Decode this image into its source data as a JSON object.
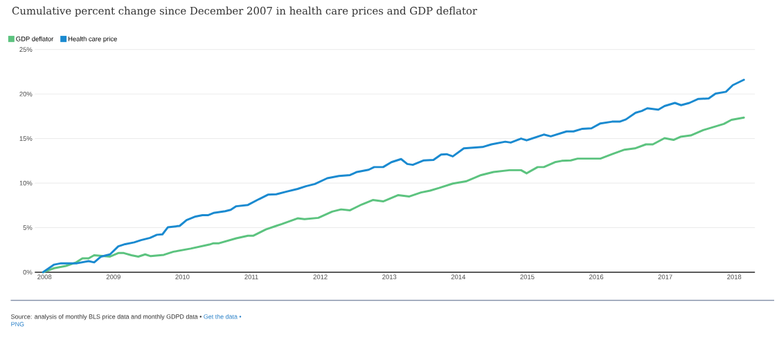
{
  "chart_data": {
    "type": "line",
    "title": "Cumulative percent change since December 2007 in health care prices and GDP deflator",
    "annotations": [
      "Source: analysis of monthly BLS price data and monthly GDPD data •",
      "Get the data •",
      "PNG"
    ],
    "series": [
      {
        "name": "GDP deflator",
        "color": "#5cc37f",
        "x": [
          2007.98,
          2008.14,
          2008.31,
          2008.46,
          2008.55,
          2008.64,
          2008.72,
          2008.95,
          2009.07,
          2009.15,
          2009.26,
          2009.36,
          2009.46,
          2009.54,
          2009.73,
          2009.87,
          2010.12,
          2010.39,
          2010.45,
          2010.53,
          2010.78,
          2010.95,
          2011.03,
          2011.21,
          2011.36,
          2011.44,
          2011.67,
          2011.77,
          2011.97,
          2012.17,
          2012.3,
          2012.43,
          2012.6,
          2012.76,
          2012.91,
          2013.13,
          2013.29,
          2013.46,
          2013.59,
          2013.72,
          2013.92,
          2014.11,
          2014.33,
          2014.51,
          2014.74,
          2014.91,
          2014.99,
          2015.15,
          2015.24,
          2015.4,
          2015.5,
          2015.63,
          2015.73,
          2016.06,
          2016.23,
          2016.41,
          2016.56,
          2016.72,
          2016.82,
          2016.99,
          2017.12,
          2017.22,
          2017.37,
          2017.55,
          2017.85,
          2017.96,
          2018.14
        ],
        "values": [
          0,
          0.45,
          0.7,
          1.1,
          1.55,
          1.55,
          1.9,
          1.75,
          2.15,
          2.15,
          1.9,
          1.75,
          2.0,
          1.8,
          1.95,
          2.3,
          2.65,
          3.1,
          3.25,
          3.25,
          3.8,
          4.1,
          4.1,
          4.8,
          5.2,
          5.4,
          6.05,
          5.95,
          6.1,
          6.8,
          7.05,
          6.95,
          7.6,
          8.1,
          7.95,
          8.65,
          8.5,
          8.95,
          9.15,
          9.45,
          9.95,
          10.2,
          10.9,
          11.25,
          11.45,
          11.45,
          11.1,
          11.8,
          11.8,
          12.35,
          12.5,
          12.55,
          12.75,
          12.75,
          13.25,
          13.75,
          13.9,
          14.35,
          14.35,
          15.05,
          14.85,
          15.2,
          15.35,
          15.95,
          16.65,
          17.1,
          17.35
        ]
      },
      {
        "name": "Health care price",
        "color": "#1a8ad0",
        "x": [
          2007.98,
          2008.14,
          2008.24,
          2008.47,
          2008.64,
          2008.72,
          2008.82,
          2008.95,
          2009.07,
          2009.17,
          2009.3,
          2009.4,
          2009.53,
          2009.63,
          2009.71,
          2009.79,
          2009.96,
          2010.06,
          2010.19,
          2010.29,
          2010.37,
          2010.45,
          2010.62,
          2010.7,
          2010.78,
          2010.95,
          2011.11,
          2011.24,
          2011.36,
          2011.51,
          2011.67,
          2011.79,
          2011.92,
          2012.1,
          2012.27,
          2012.43,
          2012.53,
          2012.7,
          2012.78,
          2012.91,
          2013.03,
          2013.17,
          2013.26,
          2013.34,
          2013.5,
          2013.64,
          2013.75,
          2013.83,
          2013.92,
          2014.08,
          2014.25,
          2014.35,
          2014.48,
          2014.68,
          2014.76,
          2014.91,
          2014.99,
          2015.24,
          2015.34,
          2015.57,
          2015.67,
          2015.8,
          2015.93,
          2016.06,
          2016.23,
          2016.34,
          2016.43,
          2016.57,
          2016.66,
          2016.74,
          2016.9,
          2016.99,
          2017.14,
          2017.23,
          2017.35,
          2017.48,
          2017.63,
          2017.73,
          2017.88,
          2017.98,
          2018.14
        ],
        "values": [
          0,
          0.85,
          1.0,
          1.0,
          1.25,
          1.1,
          1.75,
          2.0,
          2.9,
          3.15,
          3.35,
          3.6,
          3.85,
          4.2,
          4.25,
          5.05,
          5.2,
          5.85,
          6.25,
          6.4,
          6.4,
          6.65,
          6.85,
          7.0,
          7.4,
          7.55,
          8.2,
          8.7,
          8.75,
          9.05,
          9.35,
          9.65,
          9.9,
          10.55,
          10.8,
          10.9,
          11.25,
          11.5,
          11.8,
          11.8,
          12.35,
          12.7,
          12.15,
          12.05,
          12.55,
          12.6,
          13.2,
          13.25,
          13.0,
          13.9,
          14.0,
          14.05,
          14.35,
          14.65,
          14.55,
          15.0,
          14.8,
          15.45,
          15.25,
          15.8,
          15.8,
          16.1,
          16.15,
          16.7,
          16.9,
          16.9,
          17.15,
          17.9,
          18.1,
          18.4,
          18.25,
          18.65,
          19.0,
          18.75,
          19.0,
          19.45,
          19.5,
          20.05,
          20.25,
          21.0,
          21.6
        ]
      }
    ],
    "xlim": [
      2007.86,
      2018.3
    ],
    "xticks": [
      2008,
      2009,
      2010,
      2011,
      2012,
      2013,
      2014,
      2015,
      2016,
      2017,
      2018
    ],
    "ylim": [
      0,
      25
    ],
    "yticks": [
      {
        "value": 0,
        "label": "0%"
      },
      {
        "value": 5,
        "label": "5%"
      },
      {
        "value": 10,
        "label": "10%"
      },
      {
        "value": 15,
        "label": "15%"
      },
      {
        "value": 20,
        "label": "20%"
      },
      {
        "value": 25,
        "label": "25%"
      }
    ],
    "grid": "y",
    "legend": "top left",
    "marker": "none",
    "line_style": "solid"
  }
}
